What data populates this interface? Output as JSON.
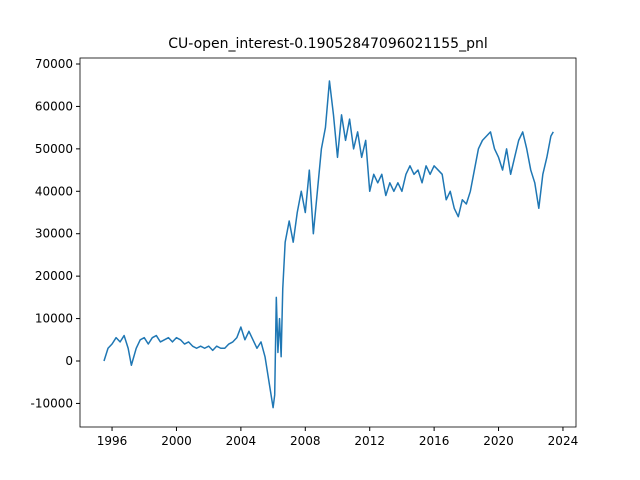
{
  "chart_data": {
    "type": "line",
    "title": "CU-open_interest-0.19052847096021155_pnl",
    "x": [
      1995.5,
      1995.75,
      1996,
      1996.25,
      1996.5,
      1996.75,
      1997,
      1997.2,
      1997.5,
      1997.75,
      1998,
      1998.25,
      1998.5,
      1998.75,
      1999,
      1999.25,
      1999.5,
      1999.75,
      2000,
      2000.25,
      2000.5,
      2000.75,
      2001,
      2001.25,
      2001.5,
      2001.75,
      2002,
      2002.25,
      2002.5,
      2002.75,
      2003,
      2003.25,
      2003.5,
      2003.75,
      2004,
      2004.25,
      2004.5,
      2004.75,
      2005,
      2005.25,
      2005.5,
      2005.75,
      2006,
      2006.1,
      2006.2,
      2006.3,
      2006.4,
      2006.5,
      2006.6,
      2006.75,
      2007,
      2007.25,
      2007.5,
      2007.75,
      2008,
      2008.25,
      2008.5,
      2008.75,
      2009,
      2009.25,
      2009.5,
      2009.75,
      2010,
      2010.25,
      2010.5,
      2010.75,
      2011,
      2011.25,
      2011.5,
      2011.75,
      2012,
      2012.25,
      2012.5,
      2012.75,
      2013,
      2013.25,
      2013.5,
      2013.75,
      2014,
      2014.25,
      2014.5,
      2014.75,
      2015,
      2015.25,
      2015.5,
      2015.75,
      2016,
      2016.25,
      2016.5,
      2016.75,
      2017,
      2017.25,
      2017.5,
      2017.75,
      2018,
      2018.25,
      2018.5,
      2018.75,
      2019,
      2019.25,
      2019.5,
      2019.75,
      2020,
      2020.25,
      2020.5,
      2020.75,
      2021,
      2021.25,
      2021.5,
      2021.75,
      2022,
      2022.25,
      2022.5,
      2022.75,
      2023,
      2023.25,
      2023.4
    ],
    "series": [
      {
        "color": "#1f77b4",
        "values": [
          0,
          3000,
          4000,
          5500,
          4500,
          6000,
          3000,
          -1000,
          3000,
          5000,
          5500,
          4000,
          5500,
          6000,
          4500,
          5000,
          5500,
          4500,
          5500,
          5000,
          4000,
          4500,
          3500,
          3000,
          3500,
          3000,
          3500,
          2500,
          3500,
          3000,
          3000,
          4000,
          4500,
          5500,
          8000,
          5000,
          7000,
          5000,
          3000,
          4500,
          1000,
          -5000,
          -11000,
          -8000,
          15000,
          2000,
          10000,
          1000,
          17000,
          28000,
          33000,
          28000,
          35000,
          40000,
          35000,
          45000,
          30000,
          40000,
          50000,
          55000,
          66000,
          58000,
          48000,
          58000,
          52000,
          57000,
          50000,
          54000,
          48000,
          52000,
          40000,
          44000,
          42000,
          44000,
          39000,
          42000,
          40000,
          42000,
          40000,
          44000,
          46000,
          44000,
          45000,
          42000,
          46000,
          44000,
          46000,
          45000,
          44000,
          38000,
          40000,
          36000,
          34000,
          38000,
          37000,
          40000,
          45000,
          50000,
          52000,
          53000,
          54000,
          50000,
          48000,
          45000,
          50000,
          44000,
          48000,
          52000,
          54000,
          50000,
          45000,
          42000,
          36000,
          44000,
          48000,
          53000,
          54000
        ]
      }
    ],
    "xlim": [
      1994.01,
      2024.81
    ],
    "xticks": [
      1996,
      2000,
      2004,
      2008,
      2012,
      2016,
      2020,
      2024
    ],
    "ylim": [
      -15555,
      71414
    ],
    "yticks": [
      -10000,
      0,
      10000,
      20000,
      30000,
      40000,
      50000,
      60000,
      70000
    ]
  }
}
